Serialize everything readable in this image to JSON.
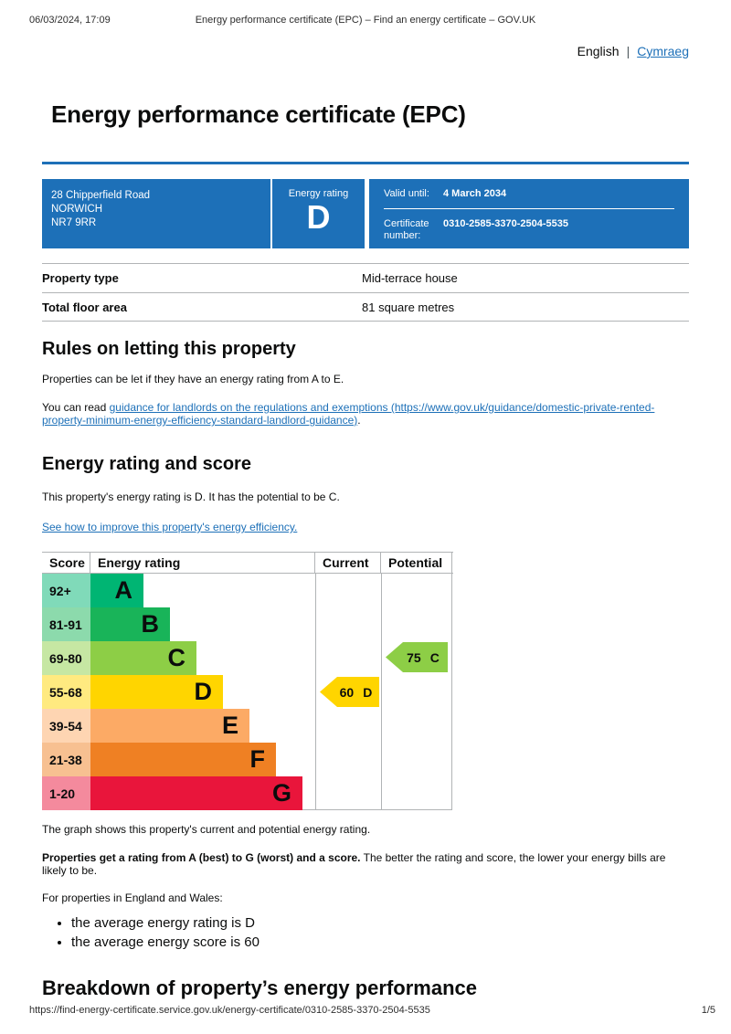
{
  "print_header": {
    "datetime": "06/03/2024, 17:09",
    "doc_title": "Energy performance certificate (EPC) – Find an energy certificate – GOV.UK"
  },
  "language": {
    "current": "English",
    "separator": "|",
    "link": "Cymraeg"
  },
  "page": {
    "title": "Energy performance certificate (EPC)"
  },
  "banner": {
    "address_line1": "28 Chipperfield Road",
    "address_line2": "NORWICH",
    "address_line3": "NR7 9RR",
    "rating_label": "Energy rating",
    "rating_letter": "D",
    "valid_until_label": "Valid until:",
    "valid_until_value": "4 March 2034",
    "certificate_number_label": "Certificate number:",
    "certificate_number_value": "0310-2585-3370-2504-5535",
    "background_color": "#1d70b8"
  },
  "summary": {
    "rows": [
      {
        "label": "Property type",
        "value": "Mid-terrace house"
      },
      {
        "label": "Total floor area",
        "value": "81 square metres"
      }
    ]
  },
  "rules_section": {
    "heading": "Rules on letting this property",
    "paragraph1": "Properties can be let if they have an energy rating from A to E.",
    "paragraph2_prefix": "You can read ",
    "paragraph2_link": "guidance for landlords on the regulations and exemptions (https://www.gov.uk/guidance/domestic-private-rented-property-minimum-energy-efficiency-standard-landlord-guidance)",
    "paragraph2_suffix": "."
  },
  "energy_section": {
    "heading": "Energy rating and score",
    "paragraph1": "This property's energy rating is D. It has the potential to be C.",
    "link": "See how to improve this property's energy efficiency."
  },
  "chart_data": {
    "type": "bar",
    "title": "EPC energy rating bands with current and potential rating",
    "headers": {
      "score": "Score",
      "rating": "Energy rating",
      "current": "Current",
      "potential": "Potential"
    },
    "bands": [
      {
        "score_range": "92+",
        "letter": "A",
        "color": "#00b573",
        "tint": "#80dab9"
      },
      {
        "score_range": "81-91",
        "letter": "B",
        "color": "#19b459",
        "tint": "#8cdaac"
      },
      {
        "score_range": "69-80",
        "letter": "C",
        "color": "#8dce46",
        "tint": "#c6e7a3"
      },
      {
        "score_range": "55-68",
        "letter": "D",
        "color": "#ffd500",
        "tint": "#ffea80"
      },
      {
        "score_range": "39-54",
        "letter": "E",
        "color": "#fcaa65",
        "tint": "#fed5b2"
      },
      {
        "score_range": "21-38",
        "letter": "F",
        "color": "#ef8023",
        "tint": "#f7c091"
      },
      {
        "score_range": "1-20",
        "letter": "G",
        "color": "#e9153b",
        "tint": "#f48a9d"
      }
    ],
    "current": {
      "value": 60,
      "letter": "D",
      "band_index": 3,
      "color": "#ffd500"
    },
    "potential": {
      "value": 75,
      "letter": "C",
      "band_index": 2,
      "color": "#8dce46"
    }
  },
  "chart_notes": {
    "paragraph1": "The graph shows this property's current and potential energy rating.",
    "paragraph2_bold": "Properties get a rating from A (best) to G (worst) and a score.",
    "paragraph2_rest": " The better the rating and score, the lower your energy bills are likely to be.",
    "paragraph3": "For properties in England and Wales:",
    "bullets": [
      "the average energy rating is D",
      "the average energy score is 60"
    ]
  },
  "breakdown_section": {
    "heading": "Breakdown of property’s energy performance"
  },
  "print_footer": {
    "url": "https://find-energy-certificate.service.gov.uk/energy-certificate/0310-2585-3370-2504-5535",
    "page_indicator": "1/5"
  },
  "colors": {
    "brand_blue": "#1d70b8",
    "link_blue": "#1d70b8",
    "border_gray": "#b1b4b6",
    "text": "#0b0c0c"
  }
}
